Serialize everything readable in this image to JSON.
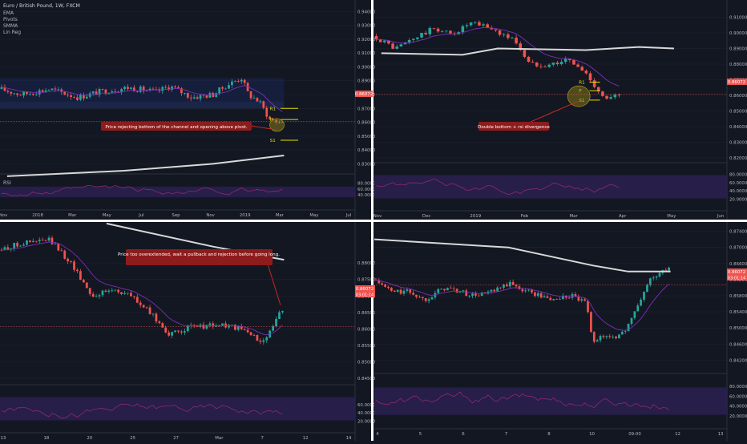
{
  "header": {
    "symbol": "Euro / British Pound, 1W, FXCM",
    "indicators": [
      "EMA",
      "Pivots",
      "SMMA",
      "Lin Reg"
    ]
  },
  "colors": {
    "background": "#131722",
    "divider": "#ffffff",
    "grid": "#1e2230",
    "axis_text": "#b2b5be",
    "up_candle": "#26a69a",
    "down_candle": "#ef5350",
    "ema": "#7b2fb7",
    "smma": "#d8d8d8",
    "pivot": "#e5e000",
    "rsi_line": "#8e2a6e",
    "rsi_band": "#2a1f4f",
    "callout_bg": "#8e1c1c",
    "price_tag": "#ef5350",
    "highlight_circle": "#9c8a18"
  },
  "current_price": "0.86072",
  "countdown": "03:01:14",
  "chart_data": [
    {
      "id": "weekly",
      "type": "candlestick",
      "interval": "1W",
      "ylim": [
        0.825,
        0.946
      ],
      "y_ticks": [
        "0.94000",
        "0.93000",
        "0.92000",
        "0.91000",
        "0.90000",
        "0.89000",
        "0.88000",
        "0.87000",
        "0.86000",
        "0.85000",
        "0.84000",
        "0.83000",
        "0.82000"
      ],
      "x_ticks": [
        "Nov",
        "2018",
        "Mar",
        "May",
        "Jul",
        "Sep",
        "Nov",
        "2019",
        "Mar",
        "May",
        "Jul"
      ],
      "pivot_labels": [
        "R1",
        "P",
        "S1"
      ],
      "annotation": "Price rejecting bottom of the channel and opening above pivot.",
      "rsi_label": "RSI",
      "rsi_ticks": [
        "80.0000",
        "60.0000",
        "40.0000"
      ],
      "rsi_band": [
        40,
        60
      ]
    },
    {
      "id": "daily",
      "type": "candlestick",
      "ylim": [
        0.819,
        0.919
      ],
      "y_ticks": [
        "0.91000",
        "0.90000",
        "0.89000",
        "0.88000",
        "0.87000",
        "0.86000",
        "0.85000",
        "0.84000",
        "0.83000",
        "0.82000"
      ],
      "x_ticks": [
        "Nov",
        "Dec",
        "2019",
        "Feb",
        "Mar",
        "Apr",
        "May",
        "Jun"
      ],
      "pivot_labels": [
        "R1",
        "P",
        "S1"
      ],
      "annotation": "Double bottom + rsi divergence",
      "rsi_ticks": [
        "80.0000",
        "60.0000",
        "40.0000",
        "20.0000"
      ],
      "rsi_band": [
        30,
        70
      ]
    },
    {
      "id": "h4",
      "type": "candlestick",
      "ylim": [
        0.844,
        0.8915
      ],
      "y_ticks": [
        "0.88000",
        "0.87500",
        "0.87000",
        "0.86500",
        "0.86000",
        "0.85500",
        "0.85000",
        "0.84500"
      ],
      "x_ticks": [
        "13",
        "18",
        "20",
        "25",
        "27",
        "Mar",
        "7",
        "12",
        "14"
      ],
      "annotation": "Price too overextended, wait a pullback and rejection before going long.",
      "rsi_ticks": [
        "60.0000",
        "40.0000",
        "20.0000"
      ],
      "rsi_band": [
        30,
        70
      ]
    },
    {
      "id": "h1",
      "type": "candlestick",
      "ylim": [
        0.8395,
        0.8755
      ],
      "y_ticks": [
        "0.87400",
        "0.87000",
        "0.86600",
        "0.86200",
        "0.85800",
        "0.85400",
        "0.85000",
        "0.84600",
        "0.84200"
      ],
      "x_ticks": [
        "4",
        "5",
        "6",
        "7",
        "8",
        "10",
        "09:00",
        "12",
        "13"
      ],
      "rsi_ticks": [
        "80.0000",
        "60.0000",
        "40.0000",
        "20.0000"
      ],
      "rsi_band": [
        30,
        70
      ]
    }
  ]
}
